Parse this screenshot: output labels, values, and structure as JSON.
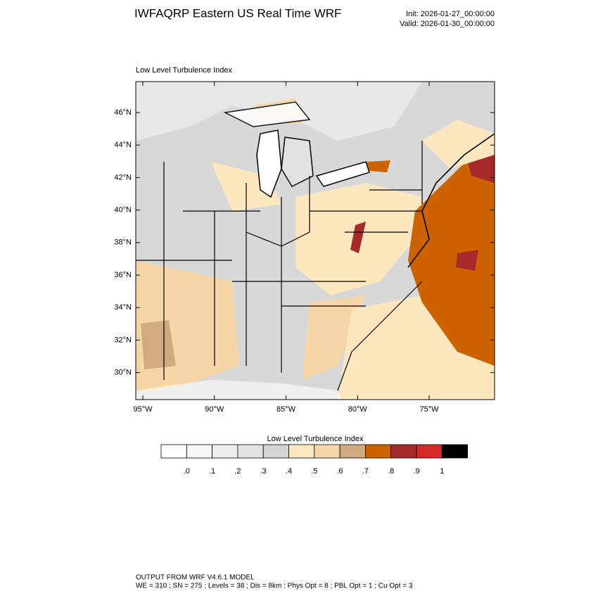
{
  "header": {
    "title": "IWFAQRP Eastern US Real Time WRF",
    "init": "Init: 2026-01-27_00:00:00",
    "valid": "Valid: 2026-01-30_00:00:00"
  },
  "map": {
    "title": "Low Level Turbulence Index",
    "lat_ticks": [
      {
        "value": 46,
        "label": "46°N"
      },
      {
        "value": 44,
        "label": "44°N"
      },
      {
        "value": 42,
        "label": "42°N"
      },
      {
        "value": 40,
        "label": "40°N"
      },
      {
        "value": 38,
        "label": "38°N"
      },
      {
        "value": 36,
        "label": "36°N"
      },
      {
        "value": 34,
        "label": "34°N"
      },
      {
        "value": 32,
        "label": "32°N"
      },
      {
        "value": 30,
        "label": "30°N"
      }
    ],
    "lon_ticks": [
      {
        "value": -95,
        "label": "95°W"
      },
      {
        "value": -90,
        "label": "90°W"
      },
      {
        "value": -85,
        "label": "85°W"
      },
      {
        "value": -80,
        "label": "80°W"
      },
      {
        "value": -75,
        "label": "75°W"
      }
    ]
  },
  "colorbar": {
    "title": "Low Level Turbulence Index",
    "colors": [
      "#ffffff",
      "#f7f7f7",
      "#eeeeee",
      "#e2e2e2",
      "#d4d4d4",
      "#fde7bf",
      "#f6d6a6",
      "#d1aa80",
      "#cc6300",
      "#a52a2a",
      "#d42a2a",
      "#000000"
    ],
    "ticks": [
      {
        "value": 0,
        "label": ".0"
      },
      {
        "value": 0.1,
        "label": ".1"
      },
      {
        "value": 0.2,
        "label": ".2"
      },
      {
        "value": 0.3,
        "label": ".3"
      },
      {
        "value": 0.4,
        "label": ".4"
      },
      {
        "value": 0.5,
        "label": ".5"
      },
      {
        "value": 0.6,
        "label": ".6"
      },
      {
        "value": 0.7,
        "label": ".7"
      },
      {
        "value": 0.8,
        "label": ".8"
      },
      {
        "value": 0.9,
        "label": ".9"
      },
      1
    ]
  },
  "footer": {
    "line1": "OUTPUT FROM WRF V4.6.1 MODEL",
    "line2": "WE = 310 ; SN = 275 ; Levels = 38 ; Dis = 8km ; Phys Opt = 8 ; PBL Opt = 1 ; Cu Opt = 3"
  }
}
